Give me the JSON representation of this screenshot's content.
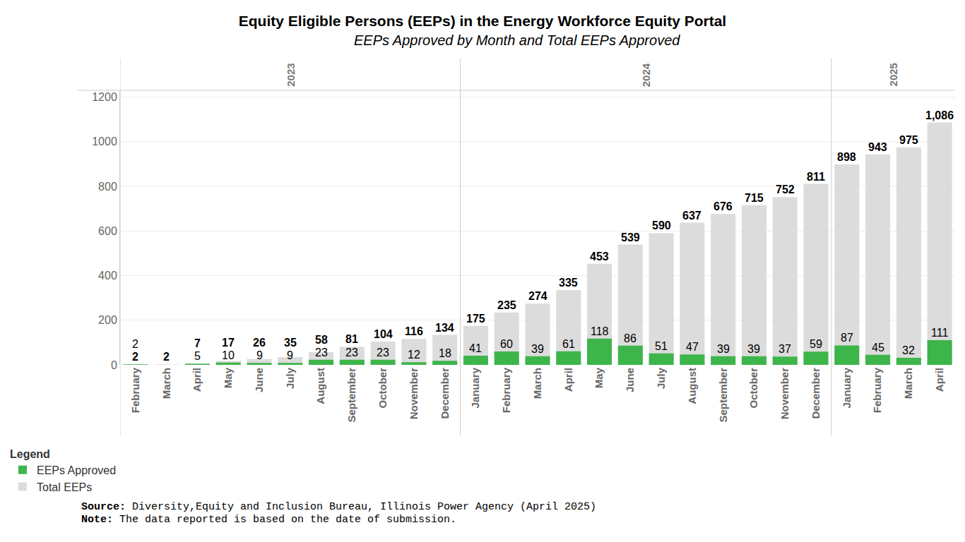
{
  "chart_data": {
    "type": "bar",
    "title": "Equity Eligible Persons (EEPs) in the Energy Workforce Equity Portal",
    "subtitle": "EEPs Approved by Month and Total EEPs Approved",
    "groups": [
      "2023",
      "2023",
      "2023",
      "2023",
      "2023",
      "2023",
      "2023",
      "2023",
      "2023",
      "2023",
      "2023",
      "2024",
      "2024",
      "2024",
      "2024",
      "2024",
      "2024",
      "2024",
      "2024",
      "2024",
      "2024",
      "2024",
      "2024",
      "2025",
      "2025",
      "2025",
      "2025"
    ],
    "categories": [
      "February",
      "March",
      "April",
      "May",
      "June",
      "July",
      "August",
      "September",
      "October",
      "November",
      "December",
      "January",
      "February",
      "March",
      "April",
      "May",
      "June",
      "July",
      "August",
      "September",
      "October",
      "November",
      "December",
      "January",
      "February",
      "March",
      "April"
    ],
    "series": [
      {
        "name": "EEPs Approved",
        "color": "#3db54a",
        "values": [
          2,
          null,
          5,
          10,
          9,
          9,
          23,
          23,
          23,
          12,
          18,
          41,
          60,
          39,
          61,
          118,
          86,
          51,
          47,
          39,
          39,
          37,
          59,
          87,
          45,
          32,
          111
        ]
      },
      {
        "name": "Total EEPs",
        "color": "#dcdcdc",
        "values": [
          2,
          2,
          7,
          17,
          26,
          35,
          58,
          81,
          104,
          116,
          134,
          175,
          235,
          274,
          335,
          453,
          539,
          590,
          637,
          676,
          715,
          752,
          811,
          898,
          943,
          975,
          1086
        ],
        "value_labels": [
          "2",
          "2",
          "7",
          "17",
          "26",
          "35",
          "58",
          "81",
          "104",
          "116",
          "134",
          "175",
          "235",
          "274",
          "335",
          "453",
          "539",
          "590",
          "637",
          "676",
          "715",
          "752",
          "811",
          "898",
          "943",
          "975",
          "1,086"
        ]
      }
    ],
    "ylim": [
      0,
      1230
    ],
    "yticks": [
      0,
      200,
      400,
      600,
      800,
      1000,
      1200
    ],
    "grid": true,
    "stacked": false,
    "data_labels": true,
    "legend": "bottom left",
    "legend_title": "Legend",
    "notes": [
      {
        "label": "Source:",
        "text": "Diversity,Equity and Inclusion Bureau, Illinois Power Agency (April 2025)"
      },
      {
        "label": "Note:",
        "text": "The data reported is based on the date of submission."
      }
    ]
  }
}
